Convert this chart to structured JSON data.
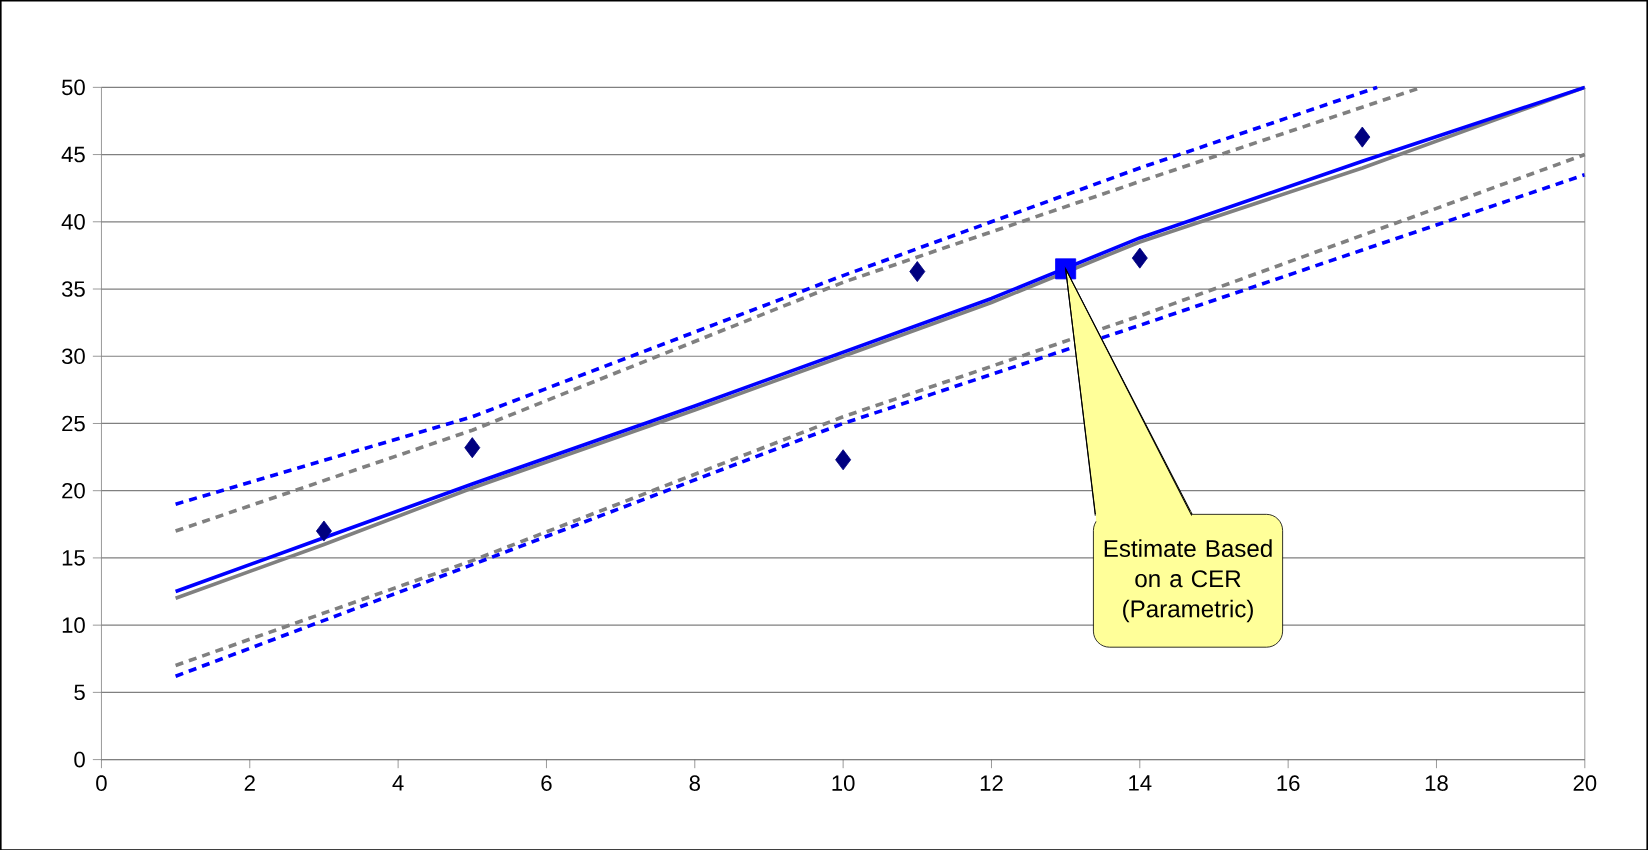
{
  "chart_data": {
    "type": "scatter",
    "xlim": [
      0,
      20
    ],
    "ylim": [
      0,
      50
    ],
    "xticks": [
      0,
      2,
      4,
      6,
      8,
      10,
      12,
      14,
      16,
      18,
      20
    ],
    "yticks": [
      0,
      5,
      10,
      15,
      20,
      25,
      30,
      35,
      40,
      45,
      50
    ],
    "grid": "y",
    "series": [
      {
        "type": "line",
        "color": "#808080",
        "x": [
          1,
          3,
          5,
          8,
          10,
          12,
          14,
          17,
          20
        ],
        "values": [
          12,
          16,
          20.2,
          26,
          30,
          34,
          38.5,
          44,
          50
        ],
        "marker": "none",
        "line_style": "solid"
      },
      {
        "type": "line",
        "color": "#0000ff",
        "x": [
          1,
          3,
          5,
          8,
          10,
          12,
          14,
          17,
          20
        ],
        "values": [
          12.5,
          16.5,
          20.5,
          26.3,
          30.3,
          34.3,
          38.8,
          44.5,
          50
        ],
        "marker": "none",
        "line_style": "solid"
      },
      {
        "type": "line",
        "color": "#808080",
        "x": [
          1,
          5,
          10,
          14,
          17.8
        ],
        "values": [
          17,
          24.5,
          35.5,
          43,
          50
        ],
        "marker": "none",
        "line_style": "dashed"
      },
      {
        "type": "line",
        "color": "#0000ff",
        "x": [
          1,
          5,
          10,
          14,
          17.2
        ],
        "values": [
          19,
          25.5,
          36,
          44,
          50
        ],
        "marker": "none",
        "line_style": "dashed"
      },
      {
        "type": "line",
        "color": "#808080",
        "x": [
          1,
          5,
          10,
          14,
          20
        ],
        "values": [
          7,
          14.8,
          25.5,
          33,
          45
        ],
        "marker": "none",
        "line_style": "dashed"
      },
      {
        "type": "line",
        "color": "#0000ff",
        "x": [
          1,
          5,
          10,
          14,
          20
        ],
        "values": [
          6.2,
          14.5,
          25,
          32.3,
          43.5
        ],
        "marker": "none",
        "line_style": "dashed"
      },
      {
        "color": "#000080",
        "x": [
          3,
          5,
          10,
          11,
          14,
          17
        ],
        "values": [
          17,
          23.2,
          22.3,
          36.3,
          37.3,
          46.3
        ],
        "marker": "diamond"
      },
      {
        "color": "#0000ff",
        "x": [
          13
        ],
        "values": [
          36.5
        ],
        "marker": "square"
      }
    ],
    "annotations": [
      {
        "text": "Estimate Based on a CER (Parametric)",
        "x": 13,
        "y": 36.5
      }
    ]
  }
}
